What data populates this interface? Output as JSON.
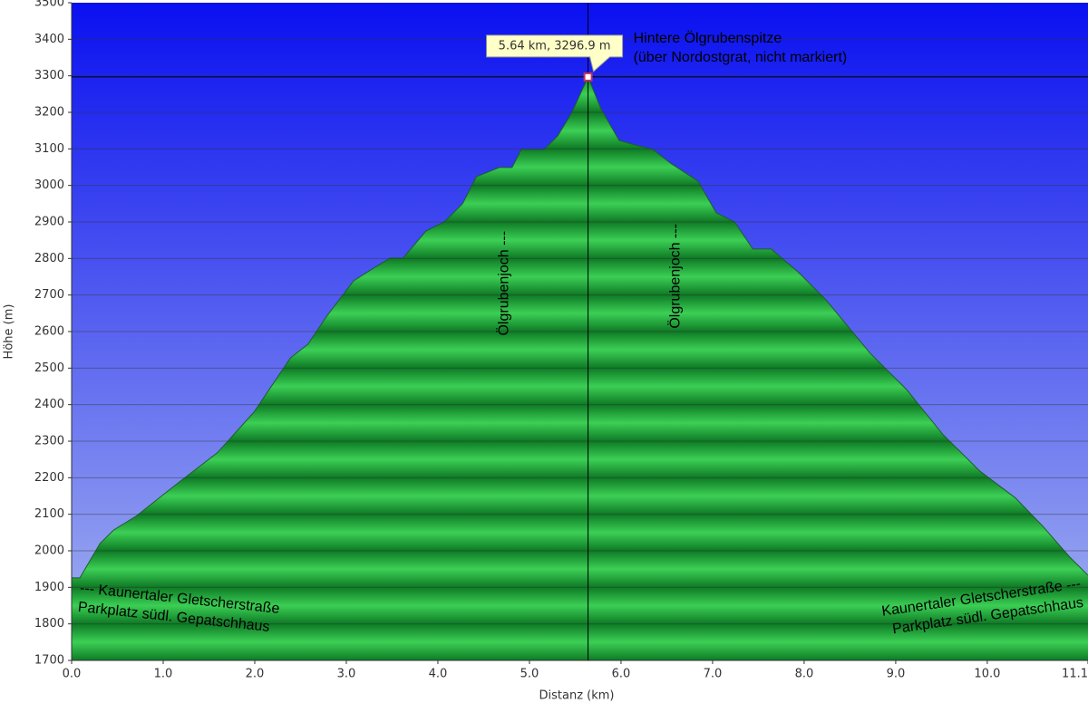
{
  "chart_data": {
    "type": "area",
    "x_label": "Distanz (km)",
    "y_label": "Höhe (m)",
    "x": [
      0,
      0.09,
      0.31,
      0.46,
      0.7,
      1.2,
      1.59,
      1.99,
      2.39,
      2.58,
      2.78,
      3.08,
      3.28,
      3.48,
      3.62,
      3.87,
      4.07,
      4.27,
      4.42,
      4.67,
      4.81,
      4.91,
      5.16,
      5.31,
      5.46,
      5.64,
      5.78,
      5.98,
      6.15,
      6.35,
      6.54,
      6.84,
      7.04,
      7.24,
      7.44,
      7.64,
      7.93,
      8.23,
      8.72,
      9.12,
      9.52,
      9.92,
      10.31,
      10.6,
      10.9,
      11.1
    ],
    "series": [
      {
        "name": "Höhe",
        "color": "#1fa83c",
        "values": [
          1926,
          1926,
          2020,
          2057,
          2094,
          2193,
          2268,
          2379,
          2528,
          2565,
          2640,
          2739,
          2771,
          2801,
          2801,
          2875,
          2900,
          2950,
          3024,
          3049,
          3049,
          3098,
          3098,
          3136,
          3198,
          3296.9,
          3210,
          3123,
          3111,
          3098,
          3061,
          3012,
          2925,
          2900,
          2826,
          2826,
          2764,
          2689,
          2541,
          2441,
          2317,
          2218,
          2144,
          2069,
          1983,
          1933
        ]
      }
    ],
    "xlim": [
      0,
      11.1
    ],
    "ylim": [
      1700,
      3500
    ],
    "xticks": [
      {
        "value": 0,
        "label": "0.0"
      },
      {
        "value": 1,
        "label": "1.0"
      },
      {
        "value": 2,
        "label": "2.0"
      },
      {
        "value": 3,
        "label": "3.0"
      },
      {
        "value": 4,
        "label": "4.0"
      },
      {
        "value": 5,
        "label": "5.0"
      },
      {
        "value": 6,
        "label": "6.0"
      },
      {
        "value": 7,
        "label": "7.0"
      },
      {
        "value": 8,
        "label": "8.0"
      },
      {
        "value": 9,
        "label": "9.0"
      },
      {
        "value": 10,
        "label": "10.0"
      },
      {
        "value": 11.1,
        "label": "11.1"
      }
    ],
    "yticks": [
      1700,
      1800,
      1900,
      2000,
      2100,
      2200,
      2300,
      2400,
      2500,
      2600,
      2700,
      2800,
      2900,
      3000,
      3100,
      3200,
      3300,
      3400,
      3500
    ],
    "grid": true,
    "marker": {
      "x": 5.64,
      "y": 3296.9,
      "label": "5.64 km, 3296.9 m"
    },
    "annotations": [
      {
        "x": 5.64,
        "y": 3296.9,
        "lines": [
          "Hintere Ölgrubenspitze",
          "(über Nordostgrat, nicht markiert)"
        ]
      },
      {
        "x": 4.67,
        "y": 3049,
        "lines": [
          "Ölgrubenjoch ---"
        ]
      },
      {
        "x": 6.54,
        "y": 3061,
        "lines": [
          "Ölgrubenjoch ---"
        ]
      },
      {
        "x": 0.09,
        "y": 1926,
        "lines": [
          "--- Kaunertaler Gletscherstraße",
          "Parkplatz südl. Gepatschhaus"
        ]
      },
      {
        "x": 11.1,
        "y": 1933,
        "lines": [
          "Kaunertaler Gletscherstraße ---",
          "Parkplatz südl. Gepatschhaus"
        ]
      }
    ]
  }
}
